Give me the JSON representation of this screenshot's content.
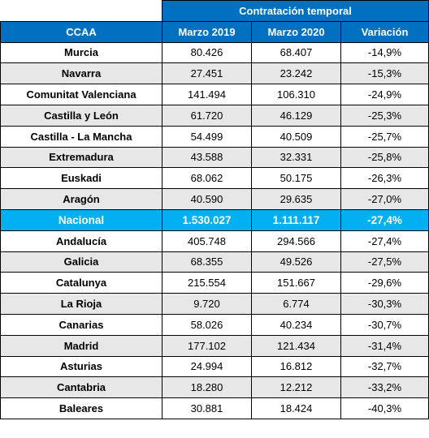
{
  "header": {
    "group_title": "Contratación temporal",
    "columns": [
      "CCAA",
      "Marzo 2019",
      "Marzo 2020",
      "Variación"
    ]
  },
  "rows": [
    {
      "region": "Murcia",
      "marzo_2019": "80.426",
      "marzo_2020": "68.407",
      "variacion": "-14,9%"
    },
    {
      "region": "Navarra",
      "marzo_2019": "27.451",
      "marzo_2020": "23.242",
      "variacion": "-15,3%"
    },
    {
      "region": "Comunitat Valenciana",
      "marzo_2019": "141.494",
      "marzo_2020": "106.310",
      "variacion": "-24,9%"
    },
    {
      "region": "Castilla y León",
      "marzo_2019": "61.720",
      "marzo_2020": "46.129",
      "variacion": "-25,3%"
    },
    {
      "region": "Castilla - La Mancha",
      "marzo_2019": "54.499",
      "marzo_2020": "40.509",
      "variacion": "-25,7%"
    },
    {
      "region": "Extremadura",
      "marzo_2019": "43.588",
      "marzo_2020": "32.331",
      "variacion": "-25,8%"
    },
    {
      "region": "Euskadi",
      "marzo_2019": "68.062",
      "marzo_2020": "50.175",
      "variacion": "-26,3%"
    },
    {
      "region": "Aragón",
      "marzo_2019": "40.590",
      "marzo_2020": "29.635",
      "variacion": "-27,0%"
    },
    {
      "region": "Nacional",
      "marzo_2019": "1.530.027",
      "marzo_2020": "1.111.117",
      "variacion": "-27,4%"
    },
    {
      "region": "Andalucía",
      "marzo_2019": "405.748",
      "marzo_2020": "294.566",
      "variacion": "-27,4%"
    },
    {
      "region": "Galicia",
      "marzo_2019": "68.355",
      "marzo_2020": "49.526",
      "variacion": "-27,5%"
    },
    {
      "region": "Catalunya",
      "marzo_2019": "215.554",
      "marzo_2020": "151.667",
      "variacion": "-29,6%"
    },
    {
      "region": "La Rioja",
      "marzo_2019": "9.720",
      "marzo_2020": "6.774",
      "variacion": "-30,3%"
    },
    {
      "region": "Canarias",
      "marzo_2019": "58.026",
      "marzo_2020": "40.234",
      "variacion": "-30,7%"
    },
    {
      "region": "Madrid",
      "marzo_2019": "177.102",
      "marzo_2020": "121.434",
      "variacion": "-31,4%"
    },
    {
      "region": "Asturias",
      "marzo_2019": "24.994",
      "marzo_2020": "16.812",
      "variacion": "-32,7%"
    },
    {
      "region": "Cantabria",
      "marzo_2019": "18.280",
      "marzo_2020": "12.212",
      "variacion": "-33,2%"
    },
    {
      "region": "Baleares",
      "marzo_2019": "30.881",
      "marzo_2020": "18.424",
      "variacion": "-40,3%"
    }
  ],
  "colors": {
    "header_blue": "#0070c0",
    "national_highlight": "#00b0f0",
    "alternate_row": "#e7e7e7"
  }
}
